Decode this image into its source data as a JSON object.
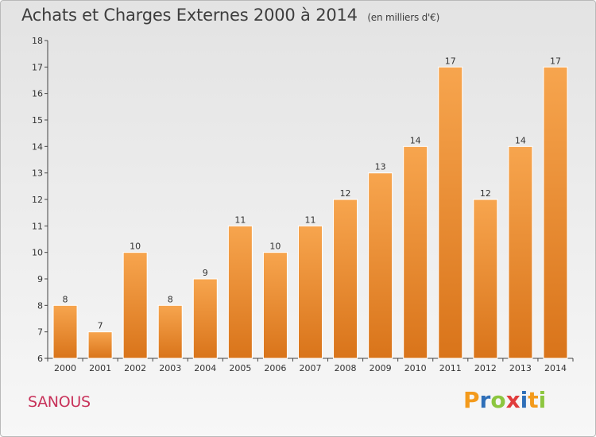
{
  "header": {
    "title": "Achats et Charges Externes 2000 à 2014",
    "subtitle": "(en milliers d'€)"
  },
  "footer": {
    "town": "SANOUS",
    "logo_text": "Proxiti",
    "logo_letters": [
      {
        "ch": "P",
        "color": "#f39a1c"
      },
      {
        "ch": "r",
        "color": "#2f6fb8"
      },
      {
        "ch": "o",
        "color": "#8cc63f"
      },
      {
        "ch": "x",
        "color": "#e03c3c"
      },
      {
        "ch": "i",
        "color": "#2f6fb8"
      },
      {
        "ch": "t",
        "color": "#f39a1c"
      },
      {
        "ch": "i",
        "color": "#8cc63f"
      }
    ]
  },
  "chart_data": {
    "type": "bar",
    "title": "Achats et Charges Externes 2000 à 2014",
    "subtitle": "(en milliers d'€)",
    "categories": [
      "2000",
      "2001",
      "2002",
      "2003",
      "2004",
      "2005",
      "2006",
      "2007",
      "2008",
      "2009",
      "2010",
      "2011",
      "2012",
      "2013",
      "2014"
    ],
    "values": [
      8,
      7,
      10,
      8,
      9,
      11,
      10,
      11,
      12,
      13,
      14,
      17,
      12,
      14,
      17
    ],
    "ylim": [
      6,
      18
    ],
    "yticks": [
      6,
      7,
      8,
      9,
      10,
      11,
      12,
      13,
      14,
      15,
      16,
      17,
      18
    ],
    "grid": false,
    "bar_color_top": "#f7a54e",
    "bar_color_bottom": "#d9741a",
    "data_labels": true
  }
}
